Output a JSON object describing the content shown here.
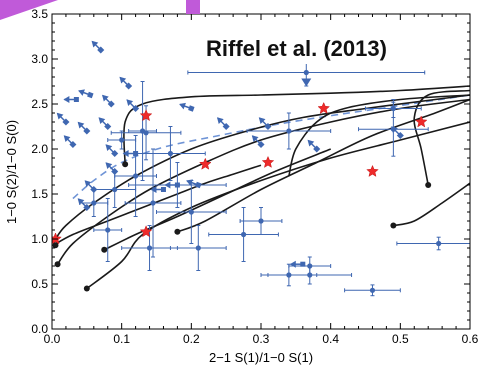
{
  "colors": {
    "accent": "#c05ad9",
    "model": "#1a1a1a",
    "data": "#3f67b1",
    "star": "#ee2a2a",
    "dashed": "#6f94d6"
  },
  "chart_data": {
    "type": "scatter",
    "title": "Riffel et al. (2013)",
    "xlabel": "2−1 S(1)/1−0 S(1)",
    "ylabel": "1−0 S(2)/1−0 S(0)",
    "xlim": [
      0.0,
      0.6
    ],
    "ylim": [
      0.0,
      3.5
    ],
    "xticks": [
      "0.0",
      "0.1",
      "0.2",
      "0.3",
      "0.4",
      "0.5",
      "0.6"
    ],
    "yticks": [
      "0.0",
      "0.5",
      "1.0",
      "1.5",
      "2.0",
      "2.5",
      "3.0",
      "3.5"
    ],
    "grid": false,
    "legend": "none",
    "models": [
      {
        "x": [
          0.005,
          0.02,
          0.06,
          0.12,
          0.2,
          0.28,
          0.36,
          0.45,
          0.55,
          0.6
        ],
        "y": [
          1.0,
          1.15,
          1.4,
          1.7,
          2.0,
          2.2,
          2.35,
          2.45,
          2.55,
          2.6
        ],
        "star": [
          0.005,
          1.0
        ]
      },
      {
        "x": [
          0.008,
          0.03,
          0.08,
          0.14,
          0.22,
          0.3,
          0.4,
          0.5,
          0.6
        ],
        "y": [
          0.72,
          0.95,
          1.25,
          1.55,
          1.85,
          2.1,
          2.3,
          2.45,
          2.55
        ],
        "star": [
          0.22,
          1.83
        ]
      },
      {
        "x": [
          0.002,
          0.03,
          0.08,
          0.13,
          0.18,
          0.22,
          0.26,
          0.3
        ],
        "y": [
          0.93,
          1.05,
          1.2,
          1.35,
          1.5,
          1.62,
          1.72,
          1.82
        ],
        "star": [
          0.31,
          1.85
        ]
      },
      {
        "x": [
          0.05,
          0.1,
          0.13,
          0.2,
          0.3,
          0.4,
          0.5,
          0.6
        ],
        "y": [
          0.45,
          0.75,
          1.05,
          1.35,
          1.65,
          1.9,
          2.1,
          2.3
        ],
        "star": [
          0.135,
          1.08
        ]
      },
      {
        "x": [
          0.075,
          0.12,
          0.18,
          0.25,
          0.32,
          0.4
        ],
        "y": [
          0.88,
          1.05,
          1.25,
          1.5,
          1.75,
          2.0
        ],
        "star": null
      },
      {
        "x": [
          0.18,
          0.22,
          0.3,
          0.38,
          0.46,
          0.55,
          0.6
        ],
        "y": [
          1.08,
          1.2,
          1.55,
          1.85,
          2.15,
          2.4,
          2.55
        ],
        "star": [
          0.46,
          1.75
        ]
      },
      {
        "x": [
          0.49,
          0.52,
          0.56,
          0.6
        ],
        "y": [
          1.15,
          1.2,
          1.4,
          1.62
        ],
        "star": null
      },
      {
        "x": [
          0.105,
          0.105,
          0.13,
          0.2,
          0.3,
          0.4,
          0.5,
          0.6
        ],
        "y": [
          1.83,
          2.3,
          2.5,
          2.58,
          2.6,
          2.62,
          2.65,
          2.7
        ],
        "star": [
          0.135,
          2.37
        ]
      },
      {
        "x": [
          0.54,
          0.53,
          0.52,
          0.54,
          0.6
        ],
        "y": [
          1.6,
          2.0,
          2.35,
          2.6,
          2.65
        ],
        "star": [
          0.53,
          2.3
        ]
      },
      {
        "x": [
          0.34,
          0.35,
          0.38,
          0.42,
          0.5,
          0.6
        ],
        "y": [
          1.7,
          2.0,
          2.3,
          2.45,
          2.55,
          2.6
        ],
        "star": [
          0.39,
          2.45
        ]
      }
    ],
    "dashed_curve": {
      "x": [
        0.03,
        0.06,
        0.1,
        0.16,
        0.24,
        0.32,
        0.4,
        0.48,
        0.6
      ],
      "y": [
        1.45,
        1.65,
        1.85,
        2.02,
        2.15,
        2.27,
        2.37,
        2.46,
        2.6
      ]
    },
    "points": [
      {
        "x": 0.365,
        "y": 2.85,
        "xerr": 0.17,
        "yerr": 0.15,
        "arrow": "down"
      },
      {
        "x": 0.13,
        "y": 2.2,
        "xerr": 0.02,
        "yerr": 0.55
      },
      {
        "x": 0.135,
        "y": 2.18,
        "xerr": 0.05,
        "yerr": 0.3
      },
      {
        "x": 0.12,
        "y": 1.7,
        "xerr": 0.03,
        "yerr": 0.45
      },
      {
        "x": 0.145,
        "y": 1.4,
        "xerr": 0.04,
        "yerr": 0.6
      },
      {
        "x": 0.17,
        "y": 1.95,
        "xerr": 0.05,
        "yerr": 0.3
      },
      {
        "x": 0.18,
        "y": 1.6,
        "xerr": 0.07,
        "yerr": 0.25
      },
      {
        "x": 0.09,
        "y": 1.55,
        "xerr": 0.03,
        "yerr": 0.2
      },
      {
        "x": 0.14,
        "y": 0.9,
        "xerr": 0.04,
        "yerr": 0.25
      },
      {
        "x": 0.2,
        "y": 1.3,
        "xerr": 0.05,
        "yerr": 0.35
      },
      {
        "x": 0.21,
        "y": 0.9,
        "xerr": 0.04,
        "yerr": 0.25
      },
      {
        "x": 0.275,
        "y": 1.05,
        "xerr": 0.05,
        "yerr": 0.3
      },
      {
        "x": 0.3,
        "y": 1.2,
        "xerr": 0.03,
        "yerr": 0.15
      },
      {
        "x": 0.34,
        "y": 0.6,
        "xerr": 0.04,
        "yerr": 0.12
      },
      {
        "x": 0.37,
        "y": 0.7,
        "xerr": 0.03,
        "yerr": 0.1
      },
      {
        "x": 0.37,
        "y": 0.6,
        "xerr": 0.06,
        "yerr": 0.1
      },
      {
        "x": 0.46,
        "y": 0.43,
        "xerr": 0.04,
        "yerr": 0.06
      },
      {
        "x": 0.555,
        "y": 0.95,
        "xerr": 0.06,
        "yerr": 0.07
      },
      {
        "x": 0.34,
        "y": 2.2,
        "xerr": 0.06,
        "yerr": 0.2
      },
      {
        "x": 0.49,
        "y": 2.22,
        "xerr": 0.05,
        "yerr": 0.3
      },
      {
        "x": 0.08,
        "y": 1.1,
        "xerr": 0.02,
        "yerr": 0.35
      },
      {
        "x": 0.06,
        "y": 1.4,
        "xerr": 0.02,
        "yerr": 0.15
      },
      {
        "x": 0.49,
        "y": 2.45,
        "xerr": 0.04,
        "yerr": 0.1
      },
      {
        "x": 0.1,
        "y": 2.1,
        "xerr": 0.02,
        "yerr": 0.1
      }
    ],
    "arrow_markers": [
      {
        "x": 0.07,
        "y": 3.1,
        "angle": 225
      },
      {
        "x": 0.055,
        "y": 2.6,
        "angle": 200
      },
      {
        "x": 0.085,
        "y": 2.5,
        "angle": 225
      },
      {
        "x": 0.035,
        "y": 2.55,
        "angle": 180
      },
      {
        "x": 0.12,
        "y": 2.45,
        "angle": 225
      },
      {
        "x": 0.11,
        "y": 2.7,
        "angle": 225
      },
      {
        "x": 0.03,
        "y": 2.05,
        "angle": 225
      },
      {
        "x": 0.05,
        "y": 2.2,
        "angle": 225
      },
      {
        "x": 0.08,
        "y": 2.25,
        "angle": 225
      },
      {
        "x": 0.09,
        "y": 1.95,
        "angle": 225
      },
      {
        "x": 0.09,
        "y": 1.75,
        "angle": 225
      },
      {
        "x": 0.06,
        "y": 1.55,
        "angle": 225
      },
      {
        "x": 0.05,
        "y": 1.35,
        "angle": 225
      },
      {
        "x": 0.12,
        "y": 1.95,
        "angle": 180
      },
      {
        "x": 0.16,
        "y": 1.55,
        "angle": 180
      },
      {
        "x": 0.21,
        "y": 1.6,
        "angle": 200
      },
      {
        "x": 0.02,
        "y": 2.3,
        "angle": 225
      },
      {
        "x": 0.3,
        "y": 2.05,
        "angle": 225
      },
      {
        "x": 0.31,
        "y": 2.25,
        "angle": 225
      },
      {
        "x": 0.38,
        "y": 2.0,
        "angle": 225
      },
      {
        "x": 0.5,
        "y": 2.15,
        "angle": 225
      },
      {
        "x": 0.25,
        "y": 2.25,
        "angle": 225
      },
      {
        "x": 0.2,
        "y": 2.45,
        "angle": 200
      },
      {
        "x": 0.36,
        "y": 0.72,
        "angle": 180
      },
      {
        "x": 0.18,
        "y": 1.6,
        "angle": 180
      }
    ],
    "end_dots": [
      {
        "x": 0.005,
        "y": 0.93
      },
      {
        "x": 0.008,
        "y": 0.72
      },
      {
        "x": 0.05,
        "y": 0.45
      },
      {
        "x": 0.075,
        "y": 0.88
      },
      {
        "x": 0.105,
        "y": 1.83
      },
      {
        "x": 0.18,
        "y": 1.08
      },
      {
        "x": 0.49,
        "y": 1.15
      },
      {
        "x": 0.54,
        "y": 1.6
      }
    ]
  }
}
